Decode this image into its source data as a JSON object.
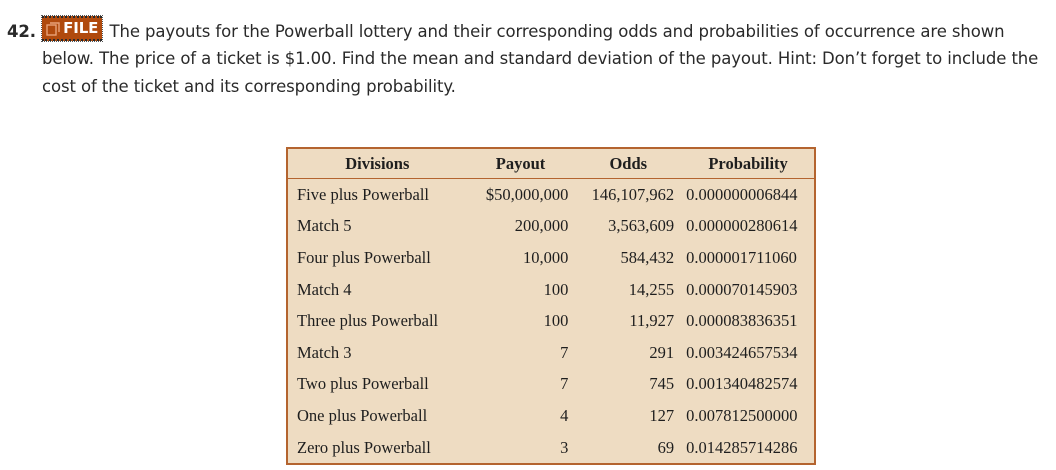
{
  "problem": {
    "number": "42.",
    "badge_label": "FILE",
    "line1": "The payouts for the Powerball lottery and their corresponding odds and probabilities of occurrence are shown",
    "line2": "below. The price of a ticket is $1.00. Find the mean and standard deviation of the payout. Hint: Don’t forget to include the",
    "line3": "cost of the ticket and its corresponding probability."
  },
  "table": {
    "headers": [
      "Divisions",
      "Payout",
      "Odds",
      "Probability"
    ],
    "rows": [
      [
        "Five plus Powerball",
        "$50,000,000",
        "146,107,962",
        "0.000000006844"
      ],
      [
        "Match 5",
        "200,000",
        "3,563,609",
        "0.000000280614"
      ],
      [
        "Four plus Powerball",
        "10,000",
        "584,432",
        "0.000001711060"
      ],
      [
        "Match 4",
        "100",
        "14,255",
        "0.000070145903"
      ],
      [
        "Three plus Powerball",
        "100",
        "11,927",
        "0.000083836351"
      ],
      [
        "Match 3",
        "7",
        "291",
        "0.003424657534"
      ],
      [
        "Two plus Powerball",
        "7",
        "745",
        "0.001340482574"
      ],
      [
        "One plus Powerball",
        "4",
        "127",
        "0.007812500000"
      ],
      [
        "Zero plus Powerball",
        "3",
        "69",
        "0.014285714286"
      ]
    ]
  },
  "colors": {
    "badge": "#b04a0d",
    "table_bg": "#eedcc2",
    "table_border": "#b4642f"
  },
  "icons": [
    "file-icon"
  ]
}
